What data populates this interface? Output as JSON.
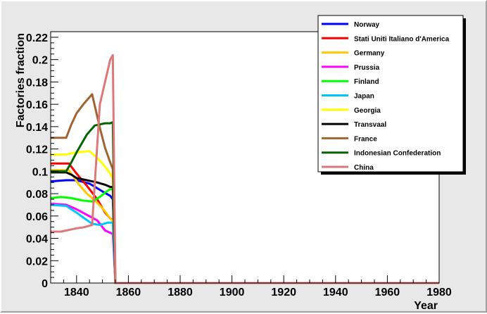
{
  "chart_data": {
    "type": "line",
    "title": "",
    "xlabel": "Year",
    "ylabel": "Factories fraction",
    "xlim": [
      1830,
      1980
    ],
    "ylim": [
      0,
      0.225
    ],
    "xticks": [
      "1840",
      "1860",
      "1880",
      "1900",
      "1920",
      "1940",
      "1960",
      "1980"
    ],
    "yticks": [
      "0",
      "0.02",
      "0.04",
      "0.06",
      "0.08",
      "0.1",
      "0.12",
      "0.14",
      "0.16",
      "0.18",
      "0.2",
      "0.22"
    ],
    "grid": false,
    "legend_position": "top-right",
    "series": [
      {
        "name": "Norway",
        "color": "#0000ff",
        "x": [
          1830,
          1836,
          1840,
          1845,
          1850,
          1853,
          1854,
          1855,
          1980
        ],
        "y": [
          0.091,
          0.092,
          0.092,
          0.089,
          0.082,
          0.078,
          0.075,
          0.0,
          0.0
        ]
      },
      {
        "name": "Stati Uniti Italiano d'America",
        "color": "#ff0000",
        "x": [
          1830,
          1837,
          1840,
          1844,
          1848,
          1851,
          1853,
          1854,
          1855,
          1980
        ],
        "y": [
          0.107,
          0.107,
          0.098,
          0.087,
          0.075,
          0.063,
          0.058,
          0.056,
          0.0,
          0.0
        ]
      },
      {
        "name": "Germany",
        "color": "#ffc800",
        "x": [
          1830,
          1837,
          1841,
          1844,
          1847,
          1850,
          1853,
          1854,
          1855,
          1980
        ],
        "y": [
          0.101,
          0.101,
          0.088,
          0.08,
          0.074,
          0.067,
          0.058,
          0.055,
          0.0,
          0.0
        ]
      },
      {
        "name": "Prussia",
        "color": "#ff00ff",
        "x": [
          1830,
          1836,
          1840,
          1844,
          1848,
          1851,
          1853,
          1854,
          1855,
          1980
        ],
        "y": [
          0.071,
          0.07,
          0.066,
          0.061,
          0.056,
          0.047,
          0.045,
          0.044,
          0.0,
          0.0
        ]
      },
      {
        "name": "Finland",
        "color": "#00ff00",
        "x": [
          1830,
          1834,
          1838,
          1842,
          1846,
          1849,
          1851,
          1853,
          1854,
          1855,
          1980
        ],
        "y": [
          0.076,
          0.077,
          0.076,
          0.074,
          0.073,
          0.077,
          0.081,
          0.084,
          0.084,
          0.0,
          0.0
        ]
      },
      {
        "name": "Japan",
        "color": "#00c8ff",
        "x": [
          1830,
          1836,
          1840,
          1843,
          1846,
          1849,
          1852,
          1853,
          1854,
          1855,
          1980
        ],
        "y": [
          0.07,
          0.069,
          0.063,
          0.058,
          0.053,
          0.052,
          0.054,
          0.054,
          0.054,
          0.0,
          0.0
        ]
      },
      {
        "name": "Georgia",
        "color": "#ffff00",
        "x": [
          1830,
          1836,
          1840,
          1845,
          1848,
          1850,
          1853,
          1854,
          1855,
          1980
        ],
        "y": [
          0.115,
          0.115,
          0.117,
          0.118,
          0.112,
          0.107,
          0.098,
          0.093,
          0.0,
          0.0
        ]
      },
      {
        "name": "Transvaal",
        "color": "#000000",
        "x": [
          1830,
          1836,
          1838,
          1840,
          1844,
          1848,
          1851,
          1853,
          1854,
          1855,
          1980
        ],
        "y": [
          0.099,
          0.099,
          0.097,
          0.094,
          0.092,
          0.09,
          0.088,
          0.086,
          0.086,
          0.0,
          0.0
        ]
      },
      {
        "name": "France",
        "color": "#a06432",
        "x": [
          1830,
          1836,
          1838,
          1840,
          1843,
          1846,
          1849,
          1851,
          1853,
          1854,
          1855,
          1980
        ],
        "y": [
          0.13,
          0.13,
          0.142,
          0.152,
          0.161,
          0.169,
          0.139,
          0.121,
          0.108,
          0.102,
          0.0,
          0.0
        ]
      },
      {
        "name": "Indonesian Confederation",
        "color": "#006400",
        "x": [
          1830,
          1836,
          1838,
          1840,
          1844,
          1847,
          1849,
          1851,
          1853,
          1854,
          1855,
          1980
        ],
        "y": [
          0.1,
          0.1,
          0.108,
          0.117,
          0.133,
          0.141,
          0.142,
          0.143,
          0.143,
          0.144,
          0.0,
          0.0
        ]
      },
      {
        "name": "China",
        "color": "#dc7878",
        "x": [
          1830,
          1834,
          1836,
          1840,
          1843,
          1846,
          1849,
          1851,
          1853,
          1854,
          1855,
          1980
        ],
        "y": [
          0.046,
          0.046,
          0.047,
          0.049,
          0.05,
          0.052,
          0.16,
          0.18,
          0.2,
          0.204,
          0.0,
          0.0
        ]
      }
    ]
  }
}
